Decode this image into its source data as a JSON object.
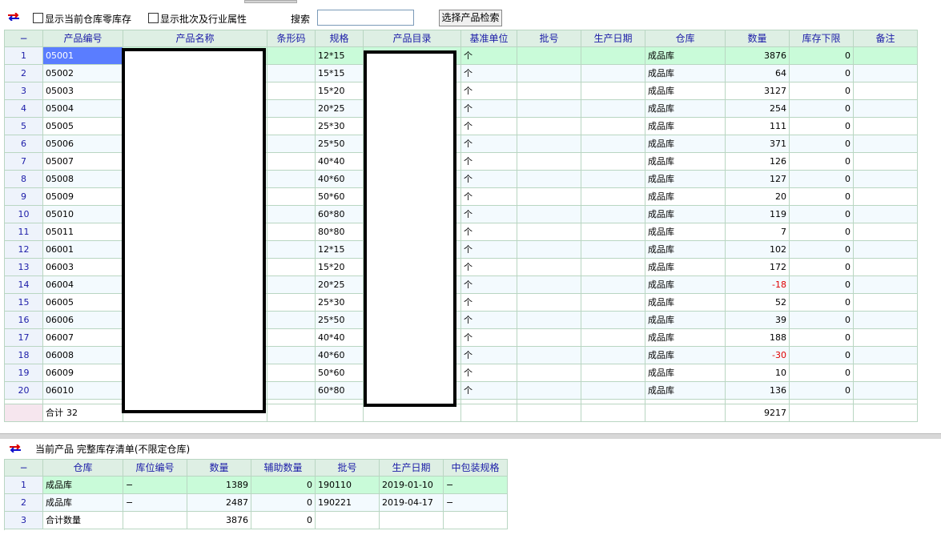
{
  "toolbar": {
    "zero_stock": "显示当前仓库零库存",
    "batch_attr": "显示批次及行业属性",
    "search_label": "搜索",
    "search_button": "选择产品检索"
  },
  "main_table": {
    "headers": [
      "−",
      "产品编号",
      "产品名称",
      "条形码",
      "规格",
      "产品目录",
      "基准单位",
      "批号",
      "生产日期",
      "仓库",
      "数量",
      "库存下限",
      "备注"
    ],
    "rows": [
      {
        "index": 1,
        "code": "05001",
        "spec": "12*15",
        "unit": "个",
        "warehouse": "成品库",
        "qty": 3876,
        "min": 0
      },
      {
        "index": 2,
        "code": "05002",
        "spec": "15*15",
        "unit": "个",
        "warehouse": "成品库",
        "qty": 64,
        "min": 0
      },
      {
        "index": 3,
        "code": "05003",
        "spec": "15*20",
        "unit": "个",
        "warehouse": "成品库",
        "qty": 3127,
        "min": 0
      },
      {
        "index": 4,
        "code": "05004",
        "spec": "20*25",
        "unit": "个",
        "warehouse": "成品库",
        "qty": 254,
        "min": 0
      },
      {
        "index": 5,
        "code": "05005",
        "spec": "25*30",
        "unit": "个",
        "warehouse": "成品库",
        "qty": 111,
        "min": 0
      },
      {
        "index": 6,
        "code": "05006",
        "spec": "25*50",
        "unit": "个",
        "warehouse": "成品库",
        "qty": 371,
        "min": 0
      },
      {
        "index": 7,
        "code": "05007",
        "spec": "40*40",
        "unit": "个",
        "warehouse": "成品库",
        "qty": 126,
        "min": 0
      },
      {
        "index": 8,
        "code": "05008",
        "spec": "40*60",
        "unit": "个",
        "warehouse": "成品库",
        "qty": 127,
        "min": 0
      },
      {
        "index": 9,
        "code": "05009",
        "spec": "50*60",
        "unit": "个",
        "warehouse": "成品库",
        "qty": 20,
        "min": 0
      },
      {
        "index": 10,
        "code": "05010",
        "spec": "60*80",
        "unit": "个",
        "warehouse": "成品库",
        "qty": 119,
        "min": 0
      },
      {
        "index": 11,
        "code": "05011",
        "spec": "80*80",
        "unit": "个",
        "warehouse": "成品库",
        "qty": 7,
        "min": 0
      },
      {
        "index": 12,
        "code": "06001",
        "spec": "12*15",
        "unit": "个",
        "warehouse": "成品库",
        "qty": 102,
        "min": 0
      },
      {
        "index": 13,
        "code": "06003",
        "spec": "15*20",
        "unit": "个",
        "warehouse": "成品库",
        "qty": 172,
        "min": 0
      },
      {
        "index": 14,
        "code": "06004",
        "spec": "20*25",
        "unit": "个",
        "warehouse": "成品库",
        "qty": -18,
        "min": 0
      },
      {
        "index": 15,
        "code": "06005",
        "spec": "25*30",
        "unit": "个",
        "warehouse": "成品库",
        "qty": 52,
        "min": 0
      },
      {
        "index": 16,
        "code": "06006",
        "spec": "25*50",
        "unit": "个",
        "warehouse": "成品库",
        "qty": 39,
        "min": 0
      },
      {
        "index": 17,
        "code": "06007",
        "spec": "40*40",
        "unit": "个",
        "warehouse": "成品库",
        "qty": 188,
        "min": 0
      },
      {
        "index": 18,
        "code": "06008",
        "spec": "40*60",
        "unit": "个",
        "warehouse": "成品库",
        "qty": -30,
        "min": 0
      },
      {
        "index": 19,
        "code": "06009",
        "spec": "50*60",
        "unit": "个",
        "warehouse": "成品库",
        "qty": 10,
        "min": 0
      },
      {
        "index": 20,
        "code": "06010",
        "spec": "60*80",
        "unit": "个",
        "warehouse": "成品库",
        "qty": 136,
        "min": 0
      }
    ],
    "total": {
      "label": "合计",
      "count": 32,
      "qty": 9217
    }
  },
  "detail": {
    "title": "当前产品 完整库存清单(不限定仓库)",
    "headers": [
      "−",
      "仓库",
      "库位编号",
      "数量",
      "辅助数量",
      "批号",
      "生产日期",
      "中包装规格"
    ],
    "rows": [
      {
        "index": 1,
        "warehouse": "成品库",
        "location": "−",
        "qty": 1389,
        "aux": 0,
        "batch": "190110",
        "date": "2019-01-10",
        "pack": "−"
      },
      {
        "index": 2,
        "warehouse": "成品库",
        "location": "−",
        "qty": 2487,
        "aux": 0,
        "batch": "190221",
        "date": "2019-04-17",
        "pack": "−"
      },
      {
        "index": 3,
        "warehouse": "合计数量",
        "qty": 3876,
        "aux": 0
      }
    ]
  }
}
